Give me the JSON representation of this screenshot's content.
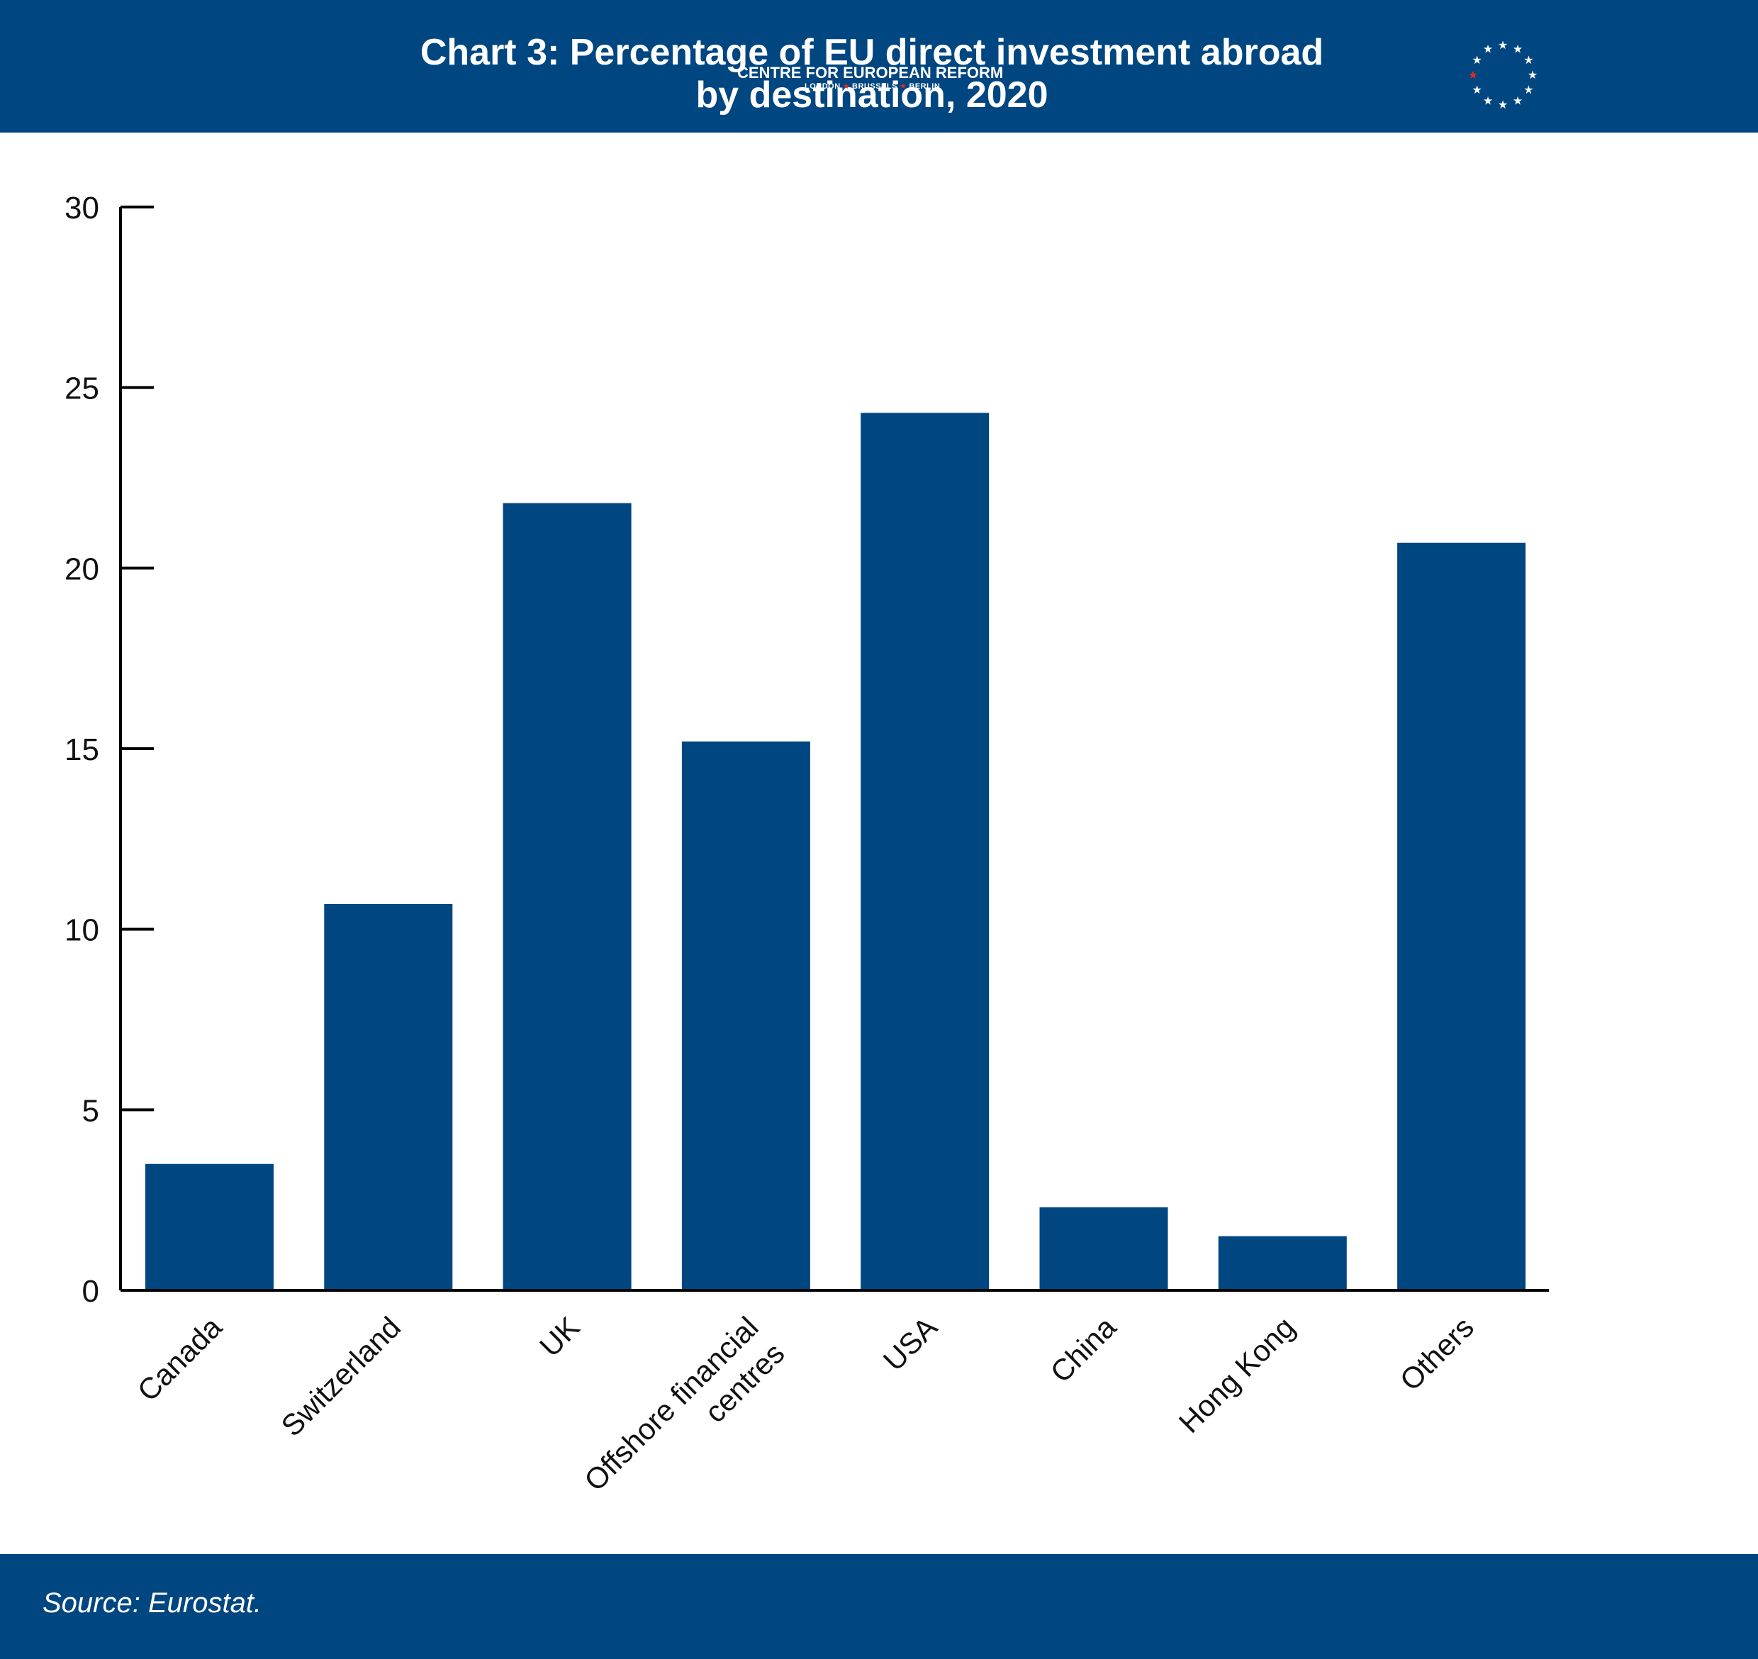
{
  "header": {
    "title_line1": "Chart 3: Percentage of EU direct investment abroad",
    "title_line2": "by destination, 2020",
    "logo_name": "CENTRE FOR EUROPEAN REFORM",
    "logo_city1": "LONDON",
    "logo_city2": "BRUSSELS",
    "logo_city3": "BERLIN"
  },
  "footer": {
    "source": "Source: Eurostat."
  },
  "colors": {
    "band": "#004680",
    "bar": "#004680",
    "axis": "#000000",
    "logo_star_accent": "#e02b2b"
  },
  "chart_data": {
    "type": "bar",
    "title": "Chart 3: Percentage of EU direct investment abroad by destination, 2020",
    "xlabel": "",
    "ylabel": "",
    "categories": [
      "Canada",
      "Switzerland",
      "UK",
      "Offshore financial centres",
      "USA",
      "China",
      "Hong Kong",
      "Others"
    ],
    "category_label_lines": [
      [
        "Canada"
      ],
      [
        "Switzerland"
      ],
      [
        "UK"
      ],
      [
        "Offshore financial",
        "centres"
      ],
      [
        "USA"
      ],
      [
        "China"
      ],
      [
        "Hong Kong"
      ],
      [
        "Others"
      ]
    ],
    "values": [
      3.5,
      10.7,
      21.8,
      15.2,
      24.3,
      2.3,
      1.5,
      20.7
    ],
    "ylim": [
      0,
      30
    ],
    "yticks": [
      0,
      5,
      10,
      15,
      20,
      25,
      30
    ],
    "grid": false,
    "legend": "none"
  }
}
